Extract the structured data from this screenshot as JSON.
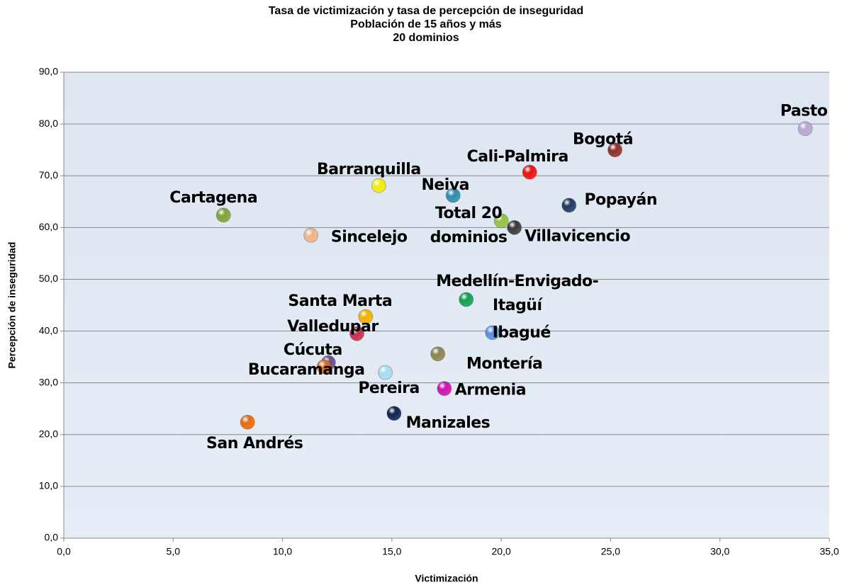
{
  "chart_data": {
    "type": "scatter",
    "title": [
      "Tasa de victimización y tasa de percepción de inseguridad",
      "Población de 15 años y más",
      "20 dominios"
    ],
    "x_label": "Victimización",
    "y_label": "Percepción de inseguridad",
    "xlim": [
      0,
      35
    ],
    "ylim": [
      0,
      90
    ],
    "xticks": [
      {
        "value": 0,
        "label": "0,0"
      },
      {
        "value": 5,
        "label": "5,0"
      },
      {
        "value": 10,
        "label": "10,0"
      },
      {
        "value": 15,
        "label": "15,0"
      },
      {
        "value": 20,
        "label": "20,0"
      },
      {
        "value": 25,
        "label": "25,0"
      },
      {
        "value": 30,
        "label": "30,0"
      },
      {
        "value": 35,
        "label": "35,0"
      }
    ],
    "yticks": [
      {
        "value": 0,
        "label": "0,0"
      },
      {
        "value": 10,
        "label": "10,0"
      },
      {
        "value": 20,
        "label": "20,0"
      },
      {
        "value": 30,
        "label": "30,0"
      },
      {
        "value": 40,
        "label": "40,0"
      },
      {
        "value": 50,
        "label": "50,0"
      },
      {
        "value": 60,
        "label": "60,0"
      },
      {
        "value": 70,
        "label": "70,0"
      },
      {
        "value": 80,
        "label": "80,0"
      },
      {
        "value": 90,
        "label": "90,0"
      }
    ],
    "grid": true,
    "series": [
      {
        "name": [
          "Pasto"
        ],
        "color": "#b8a6cf",
        "x": [
          33.9
        ],
        "values": [
          79.1
        ]
      },
      {
        "name": [
          "Bogotá"
        ],
        "color": "#8e2f2a",
        "x": [
          25.2
        ],
        "values": [
          75.0
        ]
      },
      {
        "name": [
          "Cali-Palmira"
        ],
        "color": "#ee1010",
        "x": [
          21.3
        ],
        "values": [
          70.7
        ]
      },
      {
        "name": [
          "Popayán"
        ],
        "color": "#1f3a5f",
        "x": [
          23.1
        ],
        "values": [
          64.3
        ]
      },
      {
        "name": [
          "Barranquilla"
        ],
        "color": "#f2ea10",
        "x": [
          14.4
        ],
        "values": [
          68.1
        ]
      },
      {
        "name": [
          "Neiva"
        ],
        "color": "#2e8ea8",
        "x": [
          17.8
        ],
        "values": [
          66.2
        ]
      },
      {
        "name": [
          "Cartagena"
        ],
        "color": "#7ea23a",
        "x": [
          7.3
        ],
        "values": [
          62.4
        ]
      },
      {
        "name": [
          "Total 20",
          "dominios"
        ],
        "color": "#94c23e",
        "x": [
          20.0
        ],
        "values": [
          61.3
        ]
      },
      {
        "name": [
          "Villavicencio"
        ],
        "color": "#3a3a3a",
        "x": [
          20.6
        ],
        "values": [
          60.0
        ]
      },
      {
        "name": [
          "Sincelejo"
        ],
        "color": "#f0b48a",
        "x": [
          11.3
        ],
        "values": [
          58.5
        ]
      },
      {
        "name": [
          "Medellín-Envigado-",
          "Itagüí"
        ],
        "color": "#12a050",
        "x": [
          18.4
        ],
        "values": [
          46.1
        ]
      },
      {
        "name": [
          "Santa Marta"
        ],
        "color": "#f2b100",
        "x": [
          13.8
        ],
        "values": [
          42.8
        ]
      },
      {
        "name": [
          "Valledupar"
        ],
        "color": "#c4304a",
        "x": [
          13.4
        ],
        "values": [
          39.5
        ]
      },
      {
        "name": [
          "Ibagué"
        ],
        "color": "#5a8ed8",
        "x": [
          19.6
        ],
        "values": [
          39.7
        ]
      },
      {
        "name": [
          "Montería"
        ],
        "color": "#8c8450",
        "x": [
          17.1
        ],
        "values": [
          35.6
        ]
      },
      {
        "name": [
          "Cúcuta"
        ],
        "color": "#6a4a8a",
        "x": [
          12.1
        ],
        "values": [
          33.9
        ]
      },
      {
        "name": [
          "Bucaramanga"
        ],
        "color": "#d07020",
        "x": [
          11.9
        ],
        "values": [
          33.1
        ]
      },
      {
        "name": [
          "Pereira"
        ],
        "color": "#a8dcef",
        "x": [
          14.7
        ],
        "values": [
          32.0
        ]
      },
      {
        "name": [
          "Armenia"
        ],
        "color": "#d010b0",
        "x": [
          17.4
        ],
        "values": [
          28.9
        ]
      },
      {
        "name": [
          "Manizales"
        ],
        "color": "#0e2350",
        "x": [
          15.1
        ],
        "values": [
          24.1
        ]
      },
      {
        "name": [
          "San Andrés"
        ],
        "color": "#e86a10",
        "x": [
          8.4
        ],
        "values": [
          22.4
        ]
      }
    ]
  }
}
